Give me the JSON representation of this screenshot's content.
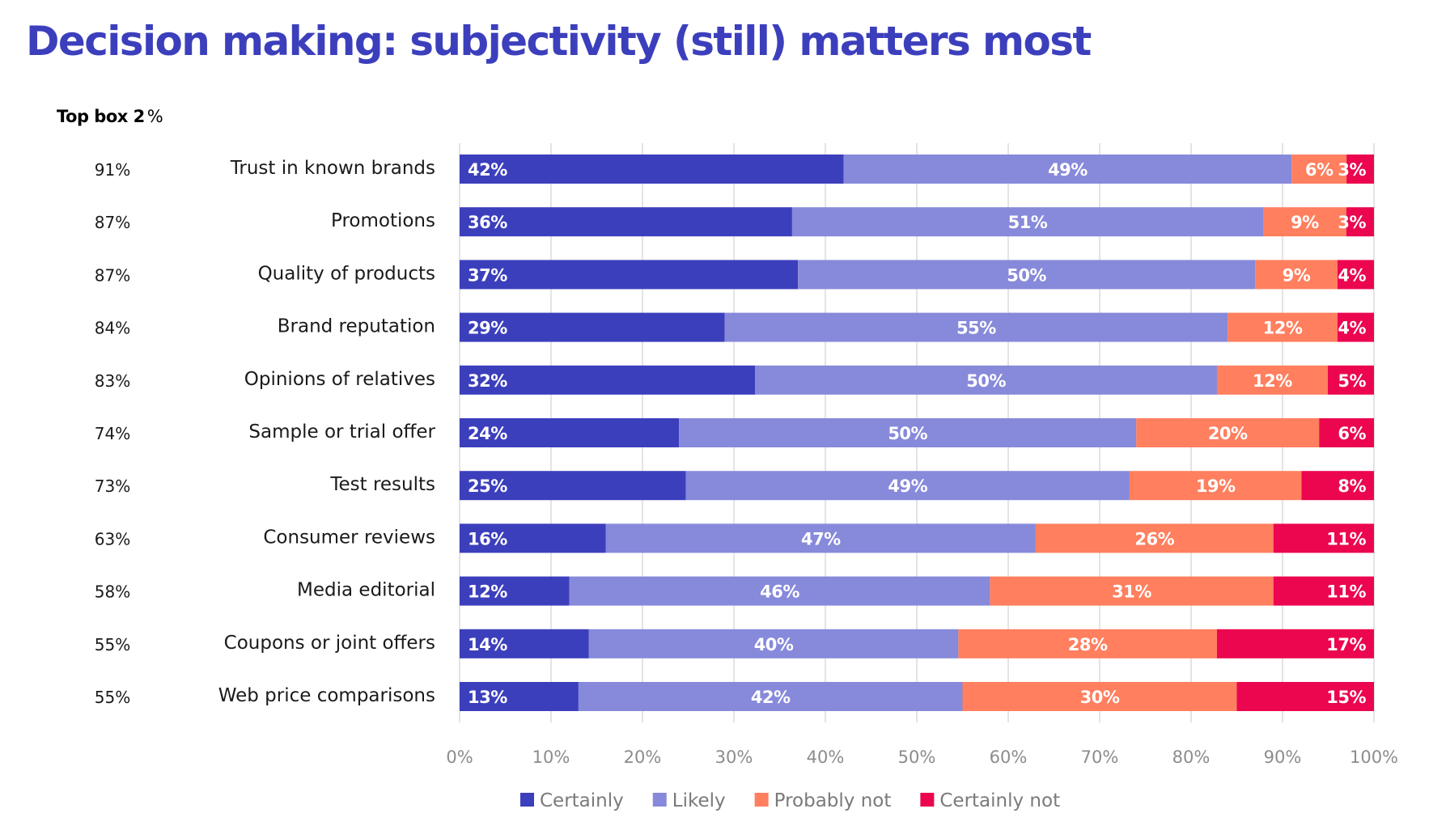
{
  "header": {
    "title": "Decision making: subjectivity (still) matters most",
    "topbox_label": "Top box 2",
    "topbox_unit": "%"
  },
  "chart_data": {
    "type": "bar",
    "orientation": "horizontal",
    "stacked": true,
    "title": "Decision making: subjectivity (still) matters most",
    "xlabel": "",
    "ylabel": "",
    "xlim": [
      0,
      100
    ],
    "x_ticks": [
      "0%",
      "10%",
      "20%",
      "30%",
      "40%",
      "50%",
      "60%",
      "70%",
      "80%",
      "90%",
      "100%"
    ],
    "grid": true,
    "legend_position": "bottom",
    "categories": [
      "Trust in known brands",
      "Promotions",
      "Quality of products",
      "Brand reputation",
      "Opinions of relatives",
      "Sample or trial offer",
      "Test results",
      "Consumer reviews",
      "Media editorial",
      "Coupons or joint offers",
      "Web price comparisons"
    ],
    "top_box_2": [
      "91%",
      "87%",
      "87%",
      "84%",
      "83%",
      "74%",
      "73%",
      "63%",
      "58%",
      "55%",
      "55%"
    ],
    "series": [
      {
        "name": "Certainly",
        "color": "#3C3FBC",
        "values": [
          42,
          36,
          37,
          29,
          32,
          24,
          25,
          16,
          12,
          14,
          13
        ]
      },
      {
        "name": "Likely",
        "color": "#8789DA",
        "values": [
          49,
          51,
          50,
          55,
          50,
          50,
          49,
          47,
          46,
          40,
          42
        ]
      },
      {
        "name": "Probably not",
        "color": "#FF7F5F",
        "values": [
          6,
          9,
          9,
          12,
          12,
          20,
          19,
          26,
          31,
          28,
          30
        ]
      },
      {
        "name": "Certainly not",
        "color": "#EB064F",
        "values": [
          3,
          3,
          4,
          4,
          5,
          6,
          8,
          11,
          11,
          17,
          15
        ]
      }
    ]
  }
}
